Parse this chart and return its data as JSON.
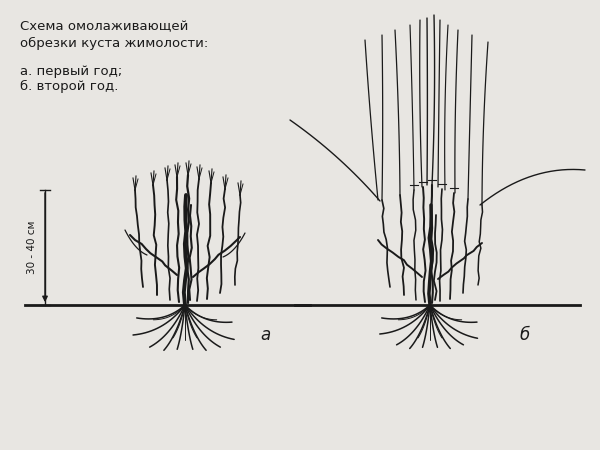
{
  "title_line1": "Схема омолаживающей",
  "title_line2": "обрезки куста жимолости:",
  "subtitle_a": "а. первый год;",
  "subtitle_b": "б. второй год.",
  "label_a": "а",
  "label_b": "б",
  "measure_label": "30 - 40 см",
  "bg_color": "#e8e6e2",
  "line_color": "#1a1a1a",
  "title_fontsize": 9.5,
  "label_fontsize": 12
}
